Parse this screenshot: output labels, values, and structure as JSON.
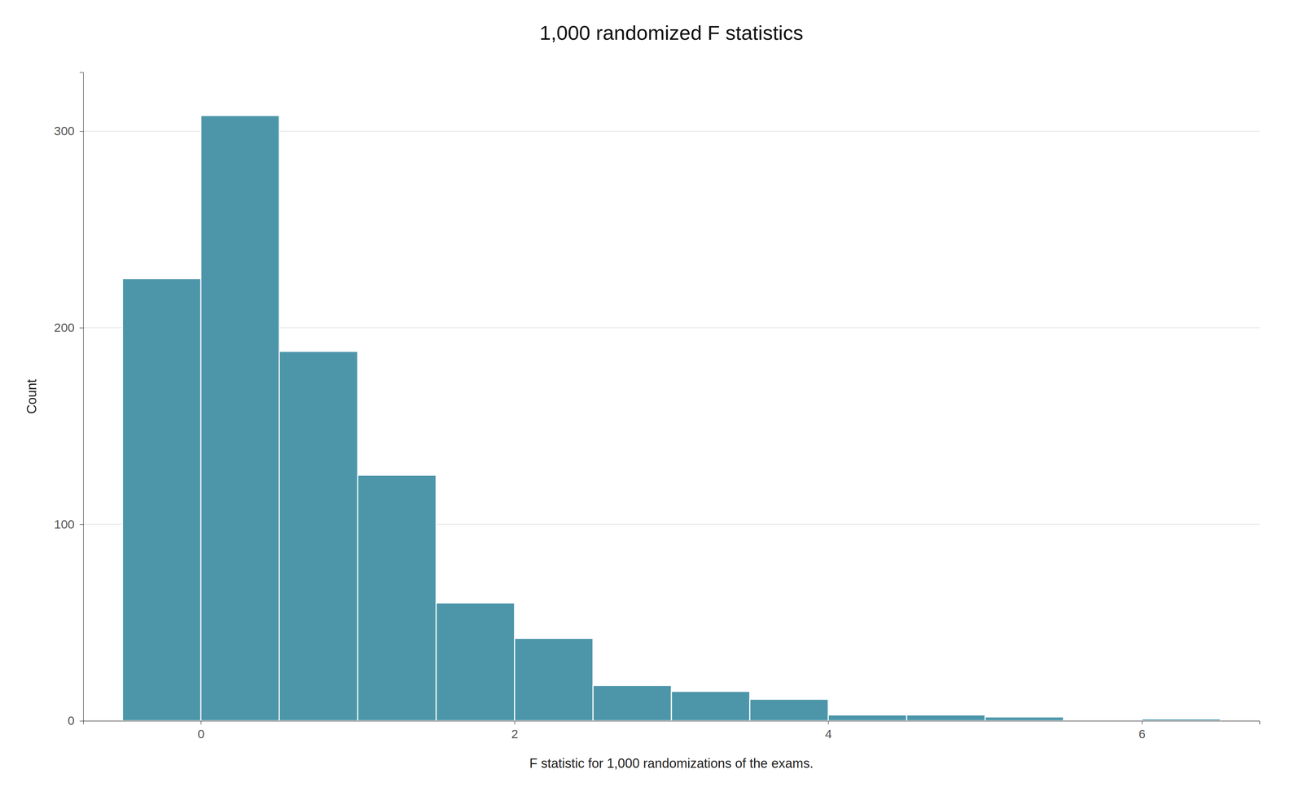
{
  "chart_data": {
    "type": "histogram",
    "title": "1,000 randomized F statistics",
    "xlabel": "F statistic for 1,000 randomizations of the exams.",
    "ylabel": "Count",
    "bins": [
      -0.5,
      0.0,
      0.5,
      1.0,
      1.5,
      2.0,
      2.5,
      3.0,
      3.5,
      4.0,
      4.5,
      5.0,
      5.5,
      6.0,
      6.5
    ],
    "values": [
      225,
      308,
      188,
      125,
      60,
      42,
      18,
      15,
      11,
      3,
      3,
      2,
      0,
      1
    ],
    "color": "#4d96aa",
    "xlim": [
      -0.75,
      6.75
    ],
    "ylim": [
      0,
      330
    ],
    "xticks": [
      0,
      2,
      4,
      6
    ],
    "yticks": [
      0,
      100,
      200,
      300
    ],
    "grid": "y"
  }
}
